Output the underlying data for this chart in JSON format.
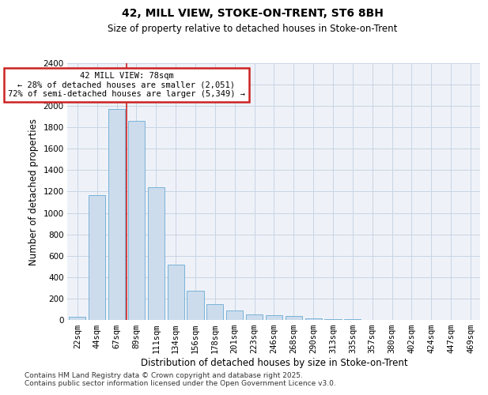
{
  "title": "42, MILL VIEW, STOKE-ON-TRENT, ST6 8BH",
  "subtitle": "Size of property relative to detached houses in Stoke-on-Trent",
  "xlabel": "Distribution of detached houses by size in Stoke-on-Trent",
  "ylabel": "Number of detached properties",
  "categories": [
    "22sqm",
    "44sqm",
    "67sqm",
    "89sqm",
    "111sqm",
    "134sqm",
    "156sqm",
    "178sqm",
    "201sqm",
    "223sqm",
    "246sqm",
    "268sqm",
    "290sqm",
    "313sqm",
    "335sqm",
    "357sqm",
    "380sqm",
    "402sqm",
    "424sqm",
    "447sqm",
    "469sqm"
  ],
  "values": [
    30,
    1170,
    1970,
    1860,
    1240,
    520,
    270,
    150,
    90,
    50,
    45,
    40,
    15,
    5,
    5,
    3,
    2,
    2,
    1,
    1,
    1
  ],
  "bar_color": "#ccdcec",
  "bar_edge_color": "#6aaad4",
  "vline_x_index": 2,
  "vline_color": "#cc2222",
  "annotation_text": "42 MILL VIEW: 78sqm\n← 28% of detached houses are smaller (2,051)\n72% of semi-detached houses are larger (5,349) →",
  "annotation_box_color": "#ffffff",
  "annotation_box_edge_color": "#cc2222",
  "ylim": [
    0,
    2400
  ],
  "yticks": [
    0,
    200,
    400,
    600,
    800,
    1000,
    1200,
    1400,
    1600,
    1800,
    2000,
    2200,
    2400
  ],
  "grid_color": "#c8d4e4",
  "background_color": "#eef2f8",
  "footer_line1": "Contains HM Land Registry data © Crown copyright and database right 2025.",
  "footer_line2": "Contains public sector information licensed under the Open Government Licence v3.0.",
  "title_fontsize": 10,
  "subtitle_fontsize": 8.5,
  "xlabel_fontsize": 8.5,
  "ylabel_fontsize": 8.5,
  "tick_fontsize": 7.5,
  "footer_fontsize": 6.5
}
